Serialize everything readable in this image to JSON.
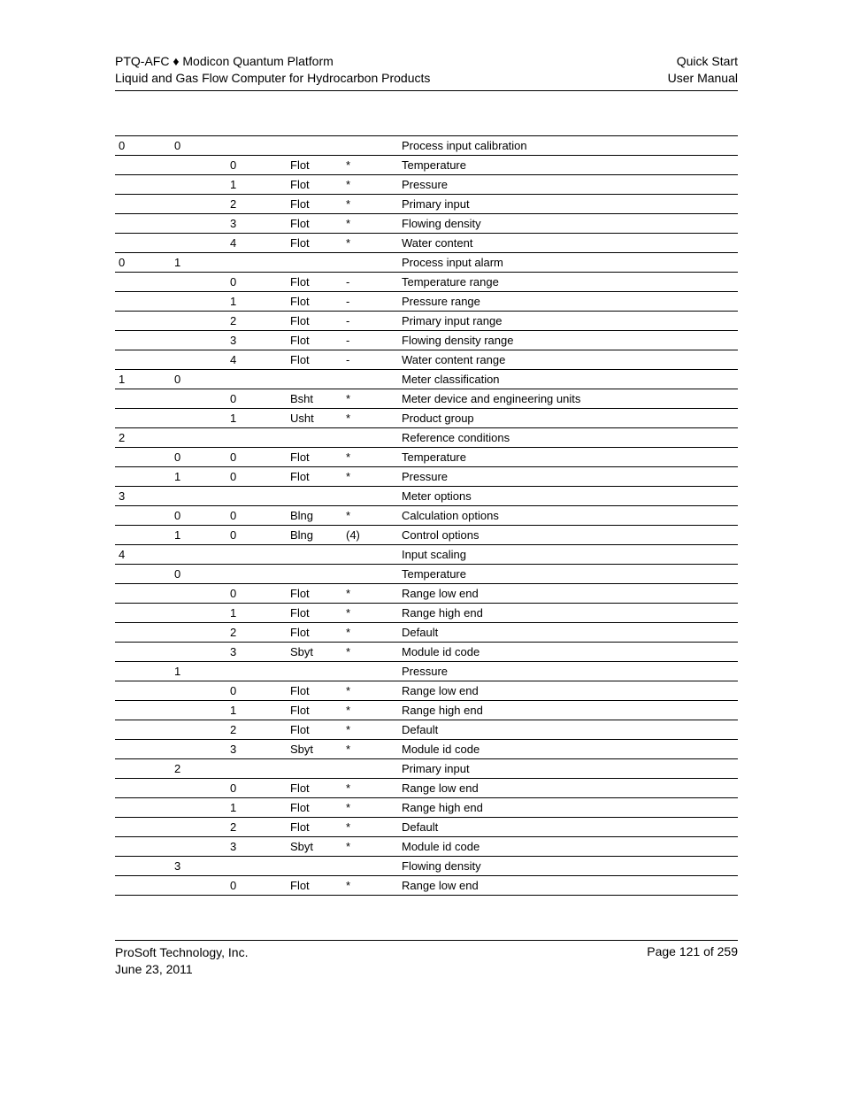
{
  "header": {
    "left_line1_a": "PTQ-AFC",
    "left_line1_sep": "♦",
    "left_line1_b": "Modicon Quantum Platform",
    "left_line2": "Liquid and Gas Flow Computer for Hydrocarbon Products",
    "right_line1": "Quick Start",
    "right_line2": "User Manual"
  },
  "table": {
    "rows": [
      [
        "0",
        "0",
        "",
        "",
        "",
        "Process input calibration"
      ],
      [
        "",
        "",
        "0",
        "Flot",
        "*",
        "Temperature"
      ],
      [
        "",
        "",
        "1",
        "Flot",
        "*",
        "Pressure"
      ],
      [
        "",
        "",
        "2",
        "Flot",
        "*",
        "Primary input"
      ],
      [
        "",
        "",
        "3",
        "Flot",
        "*",
        "Flowing density"
      ],
      [
        "",
        "",
        "4",
        "Flot",
        "*",
        "Water content"
      ],
      [
        "0",
        "1",
        "",
        "",
        "",
        "Process input alarm"
      ],
      [
        "",
        "",
        "0",
        "Flot",
        "-",
        "Temperature range"
      ],
      [
        "",
        "",
        "1",
        "Flot",
        "-",
        "Pressure range"
      ],
      [
        "",
        "",
        "2",
        "Flot",
        "-",
        "Primary input range"
      ],
      [
        "",
        "",
        "3",
        "Flot",
        "-",
        "Flowing density range"
      ],
      [
        "",
        "",
        "4",
        "Flot",
        "-",
        "Water content range"
      ],
      [
        "1",
        "0",
        "",
        "",
        "",
        "Meter classification"
      ],
      [
        "",
        "",
        "0",
        "Bsht",
        "*",
        "Meter device and engineering units"
      ],
      [
        "",
        "",
        "1",
        "Usht",
        "*",
        "Product group"
      ],
      [
        "2",
        "",
        "",
        "",
        "",
        "Reference conditions"
      ],
      [
        "",
        "0",
        "0",
        "Flot",
        "*",
        "Temperature"
      ],
      [
        "",
        "1",
        "0",
        "Flot",
        "*",
        "Pressure"
      ],
      [
        "3",
        "",
        "",
        "",
        "",
        "Meter options"
      ],
      [
        "",
        "0",
        "0",
        "Blng",
        "*",
        "Calculation options"
      ],
      [
        "",
        "1",
        "0",
        "Blng",
        "(4)",
        "Control options"
      ],
      [
        "4",
        "",
        "",
        "",
        "",
        "Input scaling"
      ],
      [
        "",
        "0",
        "",
        "",
        "",
        "Temperature"
      ],
      [
        "",
        "",
        "0",
        "Flot",
        "*",
        "Range low end"
      ],
      [
        "",
        "",
        "1",
        "Flot",
        "*",
        "Range high end"
      ],
      [
        "",
        "",
        "2",
        "Flot",
        "*",
        "Default"
      ],
      [
        "",
        "",
        "3",
        "Sbyt",
        "*",
        "Module id code"
      ],
      [
        "",
        "1",
        "",
        "",
        "",
        "Pressure"
      ],
      [
        "",
        "",
        "0",
        "Flot",
        "*",
        "Range low end"
      ],
      [
        "",
        "",
        "1",
        "Flot",
        "*",
        "Range high end"
      ],
      [
        "",
        "",
        "2",
        "Flot",
        "*",
        "Default"
      ],
      [
        "",
        "",
        "3",
        "Sbyt",
        "*",
        "Module id code"
      ],
      [
        "",
        "2",
        "",
        "",
        "",
        "Primary input"
      ],
      [
        "",
        "",
        "0",
        "Flot",
        "*",
        "Range low end"
      ],
      [
        "",
        "",
        "1",
        "Flot",
        "*",
        "Range high end"
      ],
      [
        "",
        "",
        "2",
        "Flot",
        "*",
        "Default"
      ],
      [
        "",
        "",
        "3",
        "Sbyt",
        "*",
        "Module id code"
      ],
      [
        "",
        "3",
        "",
        "",
        "",
        "Flowing density"
      ],
      [
        "",
        "",
        "0",
        "Flot",
        "*",
        "Range low end"
      ]
    ]
  },
  "footer": {
    "left_line1": "ProSoft Technology, Inc.",
    "left_line2": "June 23, 2011",
    "right": "Page 121 of 259"
  }
}
